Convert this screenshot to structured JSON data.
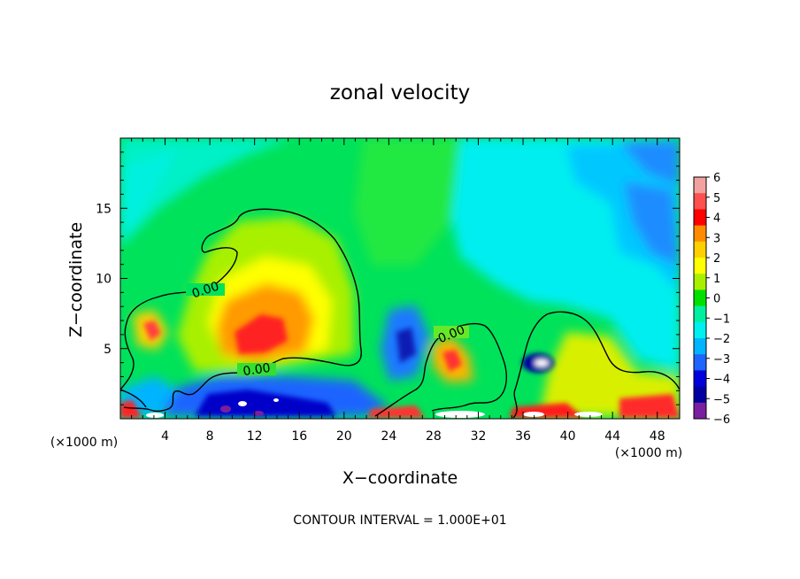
{
  "chart_data": {
    "type": "heatmap",
    "title": "zonal velocity",
    "xlabel": "X−coordinate",
    "ylabel": "Z−coordinate",
    "x_unit_left": "(×1000 m)",
    "x_unit_right": "(×1000 m)",
    "footer": "CONTOUR INTERVAL = 1.000E+01",
    "xlim": [
      0,
      50
    ],
    "ylim": [
      0,
      20
    ],
    "x_ticks": [
      "4",
      "8",
      "12",
      "16",
      "20",
      "24",
      "28",
      "32",
      "36",
      "40",
      "44",
      "48"
    ],
    "y_ticks": [
      "5",
      "10",
      "15"
    ],
    "contour_label": "0.00",
    "colorbar": {
      "levels": [
        "6",
        "5",
        "4",
        "3",
        "2",
        "1",
        "0",
        "−1",
        "−2",
        "−3",
        "−4",
        "−5",
        "−6"
      ],
      "colors": [
        "#f3a0a0",
        "#ff5050",
        "#ff0000",
        "#ff8c00",
        "#ffd000",
        "#ffff00",
        "#a8f000",
        "#00e000",
        "#00f0a0",
        "#00f0f0",
        "#00b4ff",
        "#1e64ff",
        "#0000dc",
        "#0000a0",
        "#7a1fa0"
      ]
    },
    "colors": {
      "background": "#00e25a",
      "contour": "#000000"
    }
  }
}
